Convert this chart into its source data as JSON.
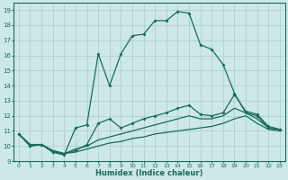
{
  "title": "",
  "xlabel": "Humidex (Indice chaleur)",
  "bg_color": "#cce8e8",
  "grid_color": "#aacccc",
  "line_color": "#1a6b5a",
  "xlim": [
    -0.5,
    23.5
  ],
  "ylim": [
    9,
    19.5
  ],
  "yticks": [
    9,
    10,
    11,
    12,
    13,
    14,
    15,
    16,
    17,
    18,
    19
  ],
  "xticks": [
    0,
    1,
    2,
    3,
    4,
    5,
    6,
    7,
    8,
    9,
    10,
    11,
    12,
    13,
    14,
    15,
    16,
    17,
    18,
    19,
    20,
    21,
    22,
    23
  ],
  "line1_x": [
    0,
    1,
    2,
    3,
    4,
    5,
    6,
    7,
    8,
    9,
    10,
    11,
    12,
    13,
    14,
    15,
    16,
    17,
    18,
    19,
    20,
    21,
    22,
    23
  ],
  "line1_y": [
    10.8,
    10.0,
    10.1,
    9.6,
    9.4,
    11.2,
    11.4,
    16.1,
    14.0,
    16.1,
    17.3,
    17.4,
    18.3,
    18.3,
    18.9,
    18.8,
    16.7,
    16.4,
    15.4,
    13.5,
    12.2,
    12.0,
    11.2,
    11.1
  ],
  "line2_x": [
    0,
    1,
    2,
    3,
    4,
    5,
    6,
    7,
    8,
    9,
    10,
    11,
    12,
    13,
    14,
    15,
    16,
    17,
    18,
    19,
    20,
    21,
    22,
    23
  ],
  "line2_y": [
    10.8,
    10.0,
    10.1,
    9.6,
    9.5,
    9.7,
    10.1,
    11.5,
    11.8,
    11.2,
    11.5,
    11.8,
    12.0,
    12.2,
    12.5,
    12.7,
    12.1,
    12.0,
    12.2,
    13.4,
    12.3,
    12.1,
    11.3,
    11.1
  ],
  "line3_x": [
    0,
    1,
    2,
    3,
    4,
    5,
    6,
    7,
    8,
    9,
    10,
    11,
    12,
    13,
    14,
    15,
    16,
    17,
    18,
    19,
    20,
    21,
    22,
    23
  ],
  "line3_y": [
    10.8,
    10.1,
    10.1,
    9.7,
    9.5,
    9.8,
    10.0,
    10.4,
    10.6,
    10.8,
    11.0,
    11.2,
    11.4,
    11.6,
    11.8,
    12.0,
    11.8,
    11.8,
    12.0,
    12.5,
    12.2,
    11.8,
    11.2,
    11.1
  ],
  "line4_x": [
    0,
    1,
    2,
    3,
    4,
    5,
    6,
    7,
    8,
    9,
    10,
    11,
    12,
    13,
    14,
    15,
    16,
    17,
    18,
    19,
    20,
    21,
    22,
    23
  ],
  "line4_y": [
    10.8,
    10.1,
    10.1,
    9.7,
    9.5,
    9.6,
    9.8,
    10.0,
    10.2,
    10.3,
    10.5,
    10.6,
    10.8,
    10.9,
    11.0,
    11.1,
    11.2,
    11.3,
    11.5,
    11.8,
    12.0,
    11.5,
    11.1,
    11.0
  ]
}
